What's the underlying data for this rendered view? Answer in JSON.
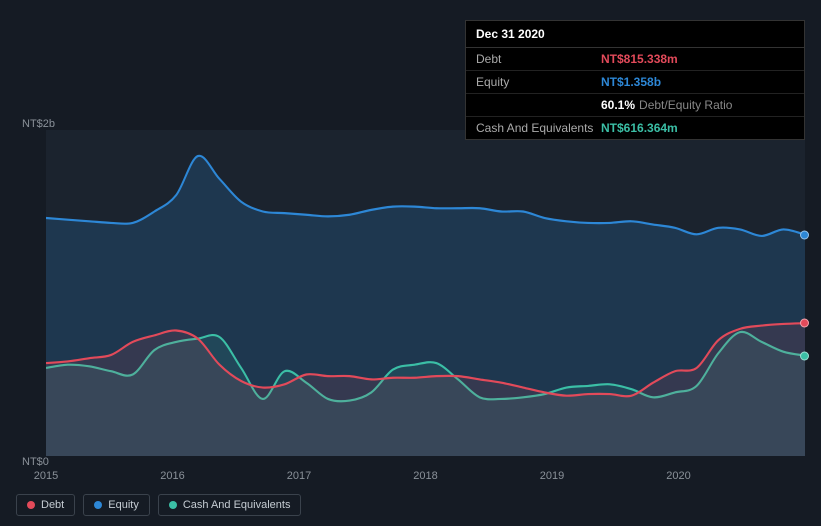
{
  "tooltip": {
    "date": "Dec 31 2020",
    "rows": [
      {
        "label": "Debt",
        "value": "NT$815.338m",
        "color": "#e24a5a"
      },
      {
        "label": "Equity",
        "value": "NT$1.358b",
        "color": "#2d87d6"
      },
      {
        "label": "",
        "value": "60.1%",
        "suffix": "Debt/Equity Ratio",
        "color": "#ffffff"
      },
      {
        "label": "Cash And Equivalents",
        "value": "NT$616.364m",
        "color": "#3bbfa6"
      }
    ]
  },
  "chart": {
    "type": "area",
    "background_color": "#1b232e",
    "page_bg": "#151b24",
    "axis_color": "#8a9199",
    "ylim": [
      0,
      2000
    ],
    "y_ticks": [
      {
        "pos": 0,
        "label": "NT$0"
      },
      {
        "pos": 2000,
        "label": "NT$2b"
      }
    ],
    "x_ticks": [
      "2015",
      "2016",
      "2017",
      "2018",
      "2019",
      "2020"
    ],
    "series": [
      {
        "name": "Equity",
        "color": "#2d87d6",
        "fill_opacity": 0.2,
        "values": [
          1460,
          1450,
          1440,
          1430,
          1430,
          1500,
          1600,
          1840,
          1700,
          1560,
          1500,
          1490,
          1480,
          1470,
          1480,
          1510,
          1530,
          1530,
          1520,
          1520,
          1520,
          1500,
          1500,
          1460,
          1440,
          1430,
          1430,
          1440,
          1420,
          1400,
          1360,
          1400,
          1390,
          1350,
          1390,
          1358
        ]
      },
      {
        "name": "Cash And Equivalents",
        "color": "#3bbfa6",
        "fill_opacity": 0.12,
        "values": [
          540,
          560,
          550,
          520,
          500,
          650,
          700,
          720,
          730,
          540,
          350,
          520,
          450,
          350,
          340,
          390,
          530,
          560,
          570,
          470,
          360,
          350,
          360,
          380,
          420,
          430,
          440,
          410,
          360,
          390,
          430,
          630,
          760,
          700,
          640,
          616
        ]
      },
      {
        "name": "Debt",
        "color": "#e24a5a",
        "fill_opacity": 0.12,
        "values": [
          570,
          580,
          600,
          620,
          700,
          740,
          770,
          720,
          560,
          460,
          420,
          440,
          500,
          490,
          490,
          470,
          480,
          480,
          490,
          490,
          470,
          450,
          420,
          390,
          370,
          380,
          380,
          370,
          450,
          520,
          540,
          710,
          780,
          800,
          810,
          815
        ]
      }
    ],
    "legend": [
      {
        "label": "Debt",
        "color": "#e24a5a"
      },
      {
        "label": "Equity",
        "color": "#2d87d6"
      },
      {
        "label": "Cash And Equivalents",
        "color": "#3bbfa6"
      }
    ]
  }
}
